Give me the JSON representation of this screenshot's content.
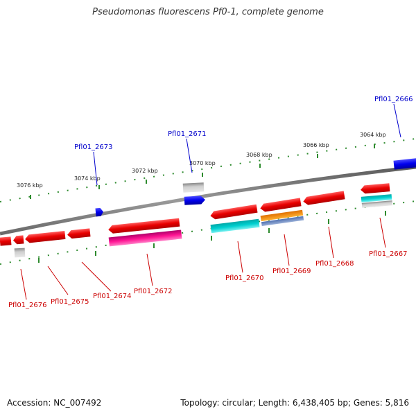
{
  "title": "Pseudomonas fluorescens Pf0-1, complete genome",
  "footer": {
    "accession": "Accession: NC_007492",
    "topology": "Topology: circular; Length: 6,438,405 bp; Genes: 5,816"
  },
  "colors": {
    "backbone": "#808080",
    "tick": "#2e8b2e",
    "label_top": "#0000cc",
    "label_bottom": "#cc0000"
  },
  "scale_labels": [
    "3076 kbp",
    "3074 kbp",
    "3072 kbp",
    "3070 kbp",
    "3068 kbp",
    "3066 kbp",
    "3064 kbp"
  ],
  "gene_labels": {
    "top": [
      "Pfl01_2673",
      "Pfl01_2671",
      "Pfl01_2666"
    ],
    "bottom": [
      "Pfl01_2676",
      "Pfl01_2675",
      "Pfl01_2674",
      "Pfl01_2672",
      "Pfl01_2670",
      "Pfl01_2669",
      "Pfl01_2668",
      "Pfl01_2667"
    ]
  }
}
